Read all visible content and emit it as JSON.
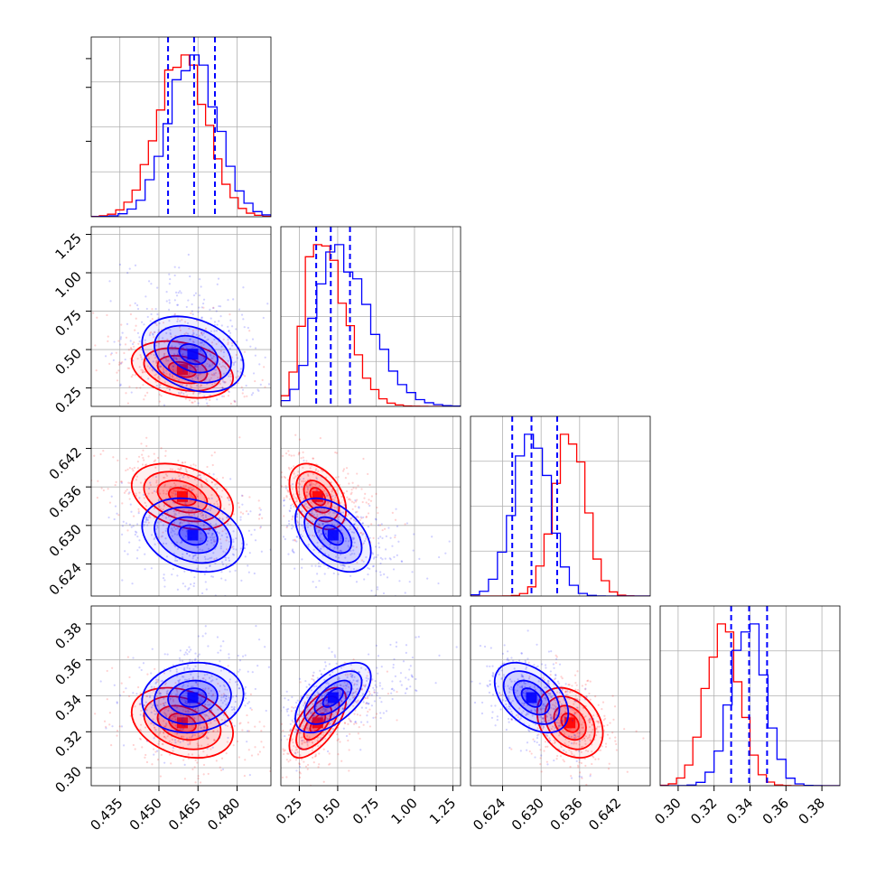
{
  "colors": {
    "series_a": "#ff0000",
    "series_b": "#0000ff",
    "quantile": "#0000ff",
    "grid": "#b0b0b0"
  },
  "chart_data": {
    "type": "corner",
    "grid": true,
    "quantiles": [
      0.16,
      0.5,
      0.84
    ],
    "series": [
      {
        "color": "#ff0000",
        "mean": [
          0.459,
          0.37,
          0.6345,
          0.325
        ],
        "std": [
          0.0095,
          0.09,
          0.0025,
          0.0095
        ]
      },
      {
        "color": "#0000ff",
        "mean": [
          0.463,
          0.47,
          0.6285,
          0.339
        ],
        "std": [
          0.0095,
          0.12,
          0.0028,
          0.0095
        ]
      }
    ],
    "correlations": {
      "red": {
        "0-1": -0.3,
        "0-2": -0.35,
        "0-3": -0.3,
        "1-2": -0.4,
        "1-3": 0.65,
        "2-3": -0.3
      },
      "blue": {
        "0-1": -0.3,
        "0-2": -0.25,
        "0-3": 0.1,
        "1-2": -0.45,
        "1-3": 0.6,
        "2-3": -0.45
      }
    },
    "quantile_values": [
      [
        0.4535,
        0.4635,
        0.4715
      ],
      [
        0.36,
        0.455,
        0.58
      ],
      [
        0.6255,
        0.6285,
        0.6325
      ],
      [
        0.3295,
        0.3395,
        0.3495
      ]
    ],
    "ranges": [
      [
        0.424,
        0.493
      ],
      [
        0.13,
        1.3
      ],
      [
        0.619,
        0.647
      ],
      [
        0.29,
        0.39
      ]
    ],
    "ticks": [
      [
        "0.435",
        "0.450",
        "0.465",
        "0.480"
      ],
      [
        "0.25",
        "0.50",
        "0.75",
        "1.00",
        "1.25"
      ],
      [
        "0.624",
        "0.630",
        "0.636",
        "0.642"
      ],
      [
        "0.30",
        "0.32",
        "0.34",
        "0.36",
        "0.38"
      ]
    ]
  }
}
